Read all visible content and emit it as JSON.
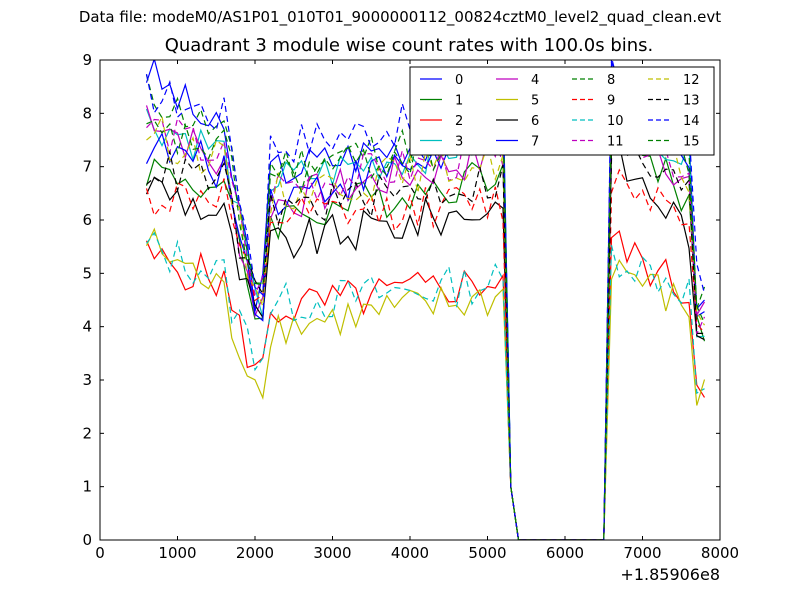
{
  "figure": {
    "suptitle": "Data file: modeM0/AS1P01_010T01_9000000112_00824cztM0_level2_quad_clean.evt"
  },
  "chart_data": {
    "type": "line",
    "title": "Quadrant 3 module wise count rates with 100.0s bins.",
    "xlabel": "",
    "ylabel": "",
    "x_offset_label": "+1.85906e8",
    "xlim": [
      0,
      8000
    ],
    "ylim": [
      0,
      9
    ],
    "xticks": [
      0,
      1000,
      2000,
      3000,
      4000,
      5000,
      6000,
      7000,
      8000
    ],
    "yticks": [
      0,
      1,
      2,
      3,
      4,
      5,
      6,
      7,
      8,
      9
    ],
    "grid": false,
    "legend_position": "top-right",
    "legend_columns": 4,
    "series": [
      {
        "name": "0",
        "color": "#0000ff",
        "dash": "solid",
        "start": 8.8,
        "plateau": 6.9,
        "dip": 4.3,
        "late": 8.9,
        "end": 4.5
      },
      {
        "name": "1",
        "color": "#008000",
        "dash": "solid",
        "start": 7.0,
        "plateau": 6.0,
        "dip": 4.0,
        "late": 8.0,
        "end": 4.0
      },
      {
        "name": "2",
        "color": "#ff0000",
        "dash": "solid",
        "start": 5.3,
        "plateau": 4.3,
        "dip": 3.0,
        "late": 5.6,
        "end": 3.0
      },
      {
        "name": "3",
        "color": "#00bfbf",
        "dash": "solid",
        "start": 7.9,
        "plateau": 6.7,
        "dip": 4.0,
        "late": 8.6,
        "end": 4.2
      },
      {
        "name": "4",
        "color": "#bf00bf",
        "dash": "solid",
        "start": 8.1,
        "plateau": 6.3,
        "dip": 4.1,
        "late": 8.4,
        "end": 4.1
      },
      {
        "name": "5",
        "color": "#bfbf00",
        "dash": "solid",
        "start": 5.6,
        "plateau": 4.0,
        "dip": 2.8,
        "late": 5.2,
        "end": 2.7
      },
      {
        "name": "6",
        "color": "#000000",
        "dash": "solid",
        "start": 6.7,
        "plateau": 5.5,
        "dip": 3.9,
        "late": 7.2,
        "end": 3.5
      },
      {
        "name": "7",
        "color": "#0000ff",
        "dash": "solid",
        "start": 7.4,
        "plateau": 6.4,
        "dip": 4.2,
        "late": 8.8,
        "end": 4.3
      },
      {
        "name": "8",
        "color": "#008000",
        "dash": "dashed",
        "start": 8.4,
        "plateau": 7.0,
        "dip": 4.5,
        "late": 8.5,
        "end": 4.6
      },
      {
        "name": "9",
        "color": "#ff0000",
        "dash": "dashed",
        "start": 6.4,
        "plateau": 6.0,
        "dip": 4.0,
        "late": 6.8,
        "end": 3.8
      },
      {
        "name": "10",
        "color": "#00bfbf",
        "dash": "dashed",
        "start": 5.5,
        "plateau": 4.4,
        "dip": 3.4,
        "late": 5.4,
        "end": 2.8
      },
      {
        "name": "11",
        "color": "#bf00bf",
        "dash": "dashed",
        "start": 7.8,
        "plateau": 6.6,
        "dip": 4.4,
        "late": 8.0,
        "end": 4.2
      },
      {
        "name": "12",
        "color": "#bfbf00",
        "dash": "dashed",
        "start": 7.7,
        "plateau": 6.5,
        "dip": 4.3,
        "late": 7.9,
        "end": 4.1
      },
      {
        "name": "13",
        "color": "#000000",
        "dash": "dashed",
        "start": 7.0,
        "plateau": 6.2,
        "dip": 4.2,
        "late": 7.4,
        "end": 4.0
      },
      {
        "name": "14",
        "color": "#0000ff",
        "dash": "dashed",
        "start": 8.4,
        "plateau": 7.4,
        "dip": 4.5,
        "late": 8.9,
        "end": 4.8
      },
      {
        "name": "15",
        "color": "#008000",
        "dash": "dashed",
        "start": 7.6,
        "plateau": 6.8,
        "dip": 4.4,
        "late": 8.3,
        "end": 4.3
      }
    ]
  }
}
